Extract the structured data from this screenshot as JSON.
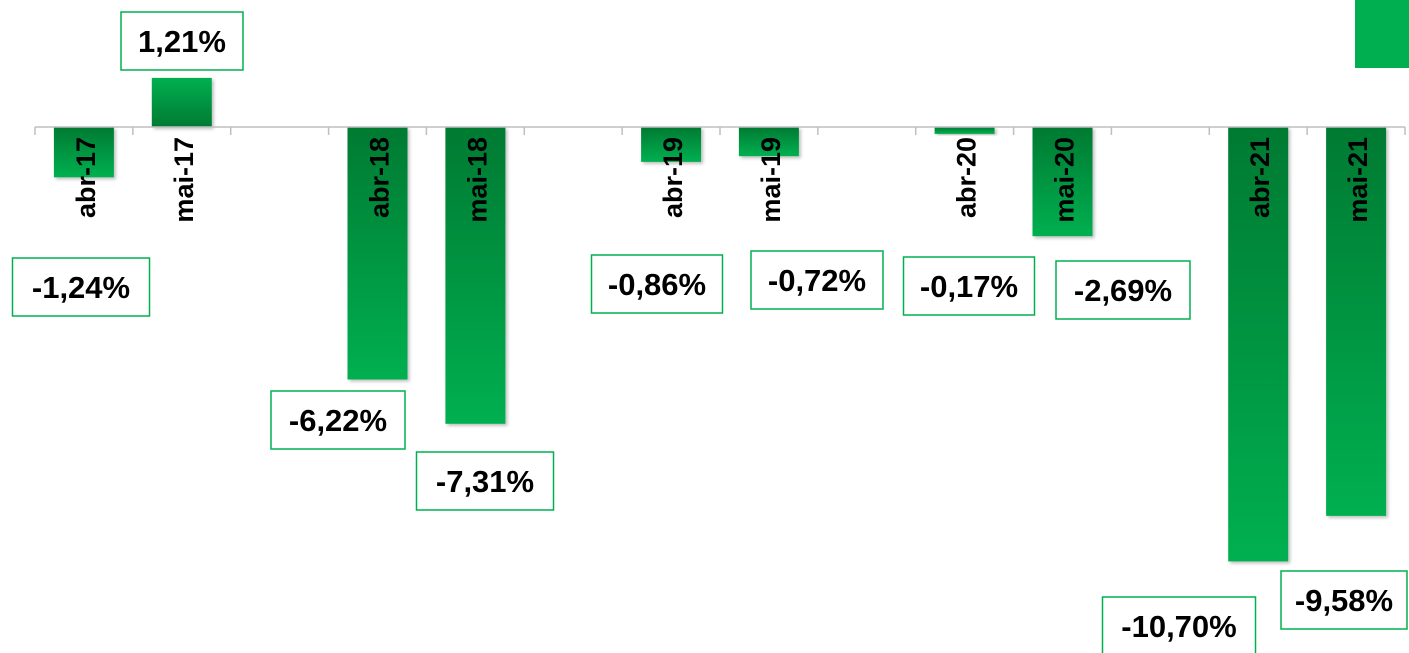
{
  "colors": {
    "bar_light": "#00b050",
    "bar_dark": "#007a32",
    "label_border": "#00b050",
    "axis": "#bfbfbf",
    "text": "#000000"
  },
  "legend": {
    "swatch_color": "#00b050"
  },
  "chart_data": {
    "type": "bar",
    "categories": [
      "abr-17",
      "mai-17",
      "",
      "abr-18",
      "mai-18",
      "",
      "abr-19",
      "mai-19",
      "",
      "abr-20",
      "mai-20",
      "",
      "abr-21",
      "mai-21"
    ],
    "values": [
      -1.24,
      1.21,
      null,
      -6.22,
      -7.31,
      null,
      -0.86,
      -0.72,
      null,
      -0.17,
      -2.69,
      null,
      -10.7,
      -9.58
    ],
    "data_labels": [
      "-1,24%",
      "1,21%",
      "",
      "-6,22%",
      "-7,31%",
      "",
      "-0,86%",
      "-0,72%",
      "",
      "-0,17%",
      "-2,69%",
      "",
      "-10,70%",
      "-9,58%"
    ],
    "unit": "%",
    "ylim": [
      -12.0,
      3.2
    ],
    "grid": false,
    "legend_position": "top-right"
  }
}
